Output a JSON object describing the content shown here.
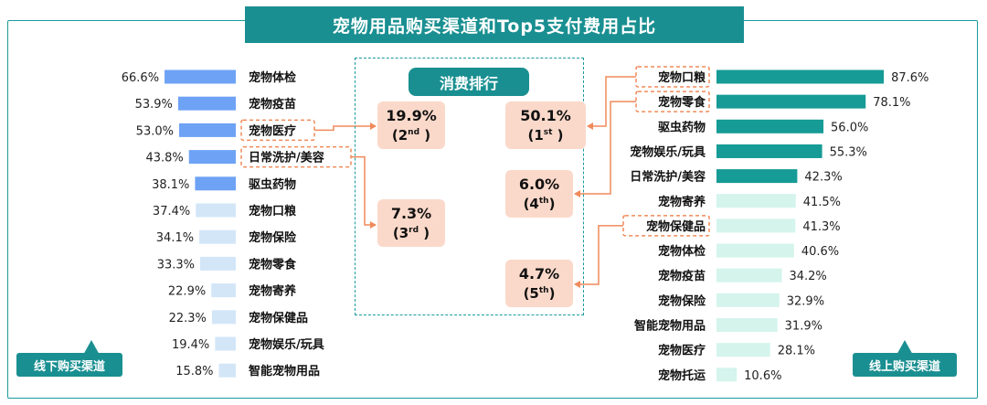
{
  "title": "宠物用品购买渠道和Top5支付费用占比",
  "center_title": "消费排行",
  "offline_label": "线下购买渠道",
  "online_label": "线上购买渠道",
  "colors": {
    "offline_strong": "#6ea2f5",
    "offline_light": "#d3e6f8",
    "online_strong": "#169b96",
    "online_light": "#d4f4ec",
    "highlight": "#f08a5a",
    "rank_bg": "#fbd9ca"
  },
  "ranks": [
    {
      "pct": "50.1%",
      "ord": "1",
      "suffix": "st"
    },
    {
      "pct": "19.9%",
      "ord": "2",
      "suffix": "nd"
    },
    {
      "pct": "7.3%",
      "ord": "3",
      "suffix": "rd"
    },
    {
      "pct": "6.0%",
      "ord": "4",
      "suffix": "th"
    },
    {
      "pct": "4.7%",
      "ord": "5",
      "suffix": "th"
    }
  ],
  "chart_data": [
    {
      "type": "bar",
      "orientation": "horizontal",
      "name": "线下购买渠道",
      "categories": [
        "宠物体检",
        "宠物疫苗",
        "宠物医疗",
        "日常洗护/美容",
        "驱虫药物",
        "宠物口粮",
        "宠物保险",
        "宠物零食",
        "宠物寄养",
        "宠物保健品",
        "宠物娱乐/玩具",
        "智能宠物用品"
      ],
      "values": [
        66.6,
        53.9,
        53.0,
        43.8,
        38.1,
        37.4,
        34.1,
        33.3,
        22.9,
        22.3,
        19.4,
        15.8
      ],
      "labels": [
        "66.6%",
        "53.9%",
        "53.0%",
        "43.8%",
        "38.1%",
        "37.4%",
        "34.1%",
        "33.3%",
        "22.9%",
        "22.3%",
        "19.4%",
        "15.8%"
      ],
      "strong_count": 5,
      "highlighted": [
        "宠物医疗",
        "日常洗护/美容"
      ]
    },
    {
      "type": "bar",
      "orientation": "horizontal",
      "name": "线上购买渠道",
      "categories": [
        "宠物口粮",
        "宠物零食",
        "驱虫药物",
        "宠物娱乐/玩具",
        "日常洗护/美容",
        "宠物寄养",
        "宠物保健品",
        "宠物体检",
        "宠物疫苗",
        "宠物保险",
        "智能宠物用品",
        "宠物医疗",
        "宠物托运"
      ],
      "values": [
        87.6,
        78.1,
        56.0,
        55.3,
        42.3,
        41.5,
        41.3,
        40.6,
        34.2,
        32.9,
        31.9,
        28.1,
        10.6
      ],
      "labels": [
        "87.6%",
        "78.1%",
        "56.0%",
        "55.3%",
        "42.3%",
        "41.5%",
        "41.3%",
        "40.6%",
        "34.2%",
        "32.9%",
        "31.9%",
        "28.1%",
        "10.6%"
      ],
      "strong_count": 5,
      "highlighted": [
        "宠物口粮",
        "宠物零食",
        "宠物保健品"
      ]
    }
  ]
}
